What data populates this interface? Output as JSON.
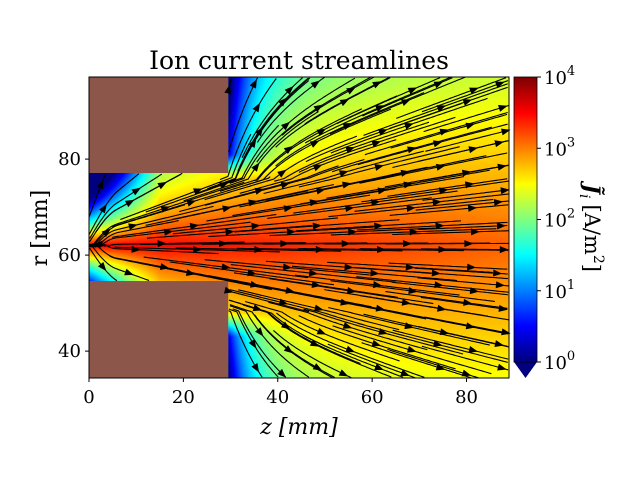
{
  "chart_data": {
    "type": "heatmap",
    "subtype": "streamplot",
    "title": "Ion current streamlines",
    "xlabel": "z [mm]",
    "ylabel": "r [mm]",
    "xlim": [
      0,
      89
    ],
    "ylim": [
      34.4,
      97.1
    ],
    "xticks": [
      0,
      20,
      40,
      60,
      80
    ],
    "xtick_labels": [
      "0",
      "20",
      "40",
      "60",
      "80"
    ],
    "yticks": [
      40,
      60,
      80
    ],
    "ytick_labels": [
      "40",
      "60",
      "80"
    ],
    "colormap": "jet",
    "color_scale": "log",
    "clim": [
      1,
      10000
    ],
    "colorbar": {
      "label": "J̃ᵢ [A/m²]",
      "label_main": "J̃",
      "label_sub": "i",
      "label_units": "[A/m",
      "label_units_exp": "2",
      "label_units_close": "]",
      "extend": "min",
      "ticks": [
        {
          "value": 1,
          "base": "10",
          "exp": "0"
        },
        {
          "value": 10,
          "base": "10",
          "exp": "1"
        },
        {
          "value": 100,
          "base": "10",
          "exp": "2"
        },
        {
          "value": 1000,
          "base": "10",
          "exp": "3"
        },
        {
          "value": 10000,
          "base": "10",
          "exp": "4"
        }
      ]
    },
    "electrodes": [
      {
        "name": "upper-electrode",
        "z": [
          0,
          29.5
        ],
        "r": [
          77.1,
          97.1
        ],
        "color": "#8c564b"
      },
      {
        "name": "lower-electrode",
        "z": [
          0,
          29.5
        ],
        "r": [
          34.4,
          54.6
        ],
        "color": "#8c564b"
      }
    ],
    "plume_axis_r": 62,
    "grid": false
  }
}
